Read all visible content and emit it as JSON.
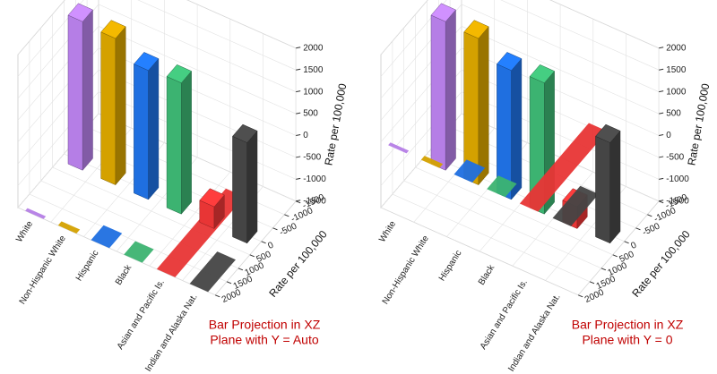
{
  "chart_data": [
    {
      "type": "bar3d",
      "projection_y": "auto",
      "categories": [
        "White",
        "Non-Hispanic White",
        "Hispanic",
        "Black",
        "Asian and Pacific Is.",
        "A. Indian and Alaska Nat."
      ],
      "values": [
        1900,
        1850,
        1450,
        1500,
        -1000,
        800
      ],
      "colors": [
        "#b57ee6",
        "#d4a100",
        "#1f6fe0",
        "#3cb371",
        "#e83535",
        "#454545"
      ],
      "y_label": "Rate per 100,000",
      "z_label": "Rate per 100,000",
      "ylim": [
        -1500,
        2000
      ],
      "yticks": [
        -1500,
        -1000,
        -500,
        0,
        500,
        1000,
        1500,
        2000
      ],
      "zlim": [
        -1500,
        2000
      ],
      "zticks": [
        -1500,
        -1000,
        -500,
        0,
        500,
        1000,
        1500,
        2000
      ],
      "annotation": [
        "Bar Projection in XZ",
        "Plane with Y = Auto"
      ],
      "grid": true
    },
    {
      "type": "bar3d",
      "projection_y": 0,
      "categories": [
        "White",
        "Non-Hispanic White",
        "Hispanic",
        "Black",
        "Asian and Pacific Is.",
        "A. Indian and Alaska Nat."
      ],
      "values": [
        1900,
        1850,
        1450,
        1500,
        -1000,
        800
      ],
      "colors": [
        "#b57ee6",
        "#d4a100",
        "#1f6fe0",
        "#3cb371",
        "#e83535",
        "#454545"
      ],
      "y_label": "Rate per 100,000",
      "z_label": "Rate per 100,000",
      "ylim": [
        -1500,
        2000
      ],
      "yticks": [
        -1500,
        -1000,
        -500,
        0,
        500,
        1000,
        1500,
        2000
      ],
      "zlim": [
        -1500,
        2000
      ],
      "zticks": [
        -1500,
        -1000,
        -500,
        0,
        500,
        1000,
        1500,
        2000
      ],
      "annotation": [
        "Bar Projection in XZ",
        "Plane with Y = 0"
      ],
      "grid": true
    }
  ]
}
